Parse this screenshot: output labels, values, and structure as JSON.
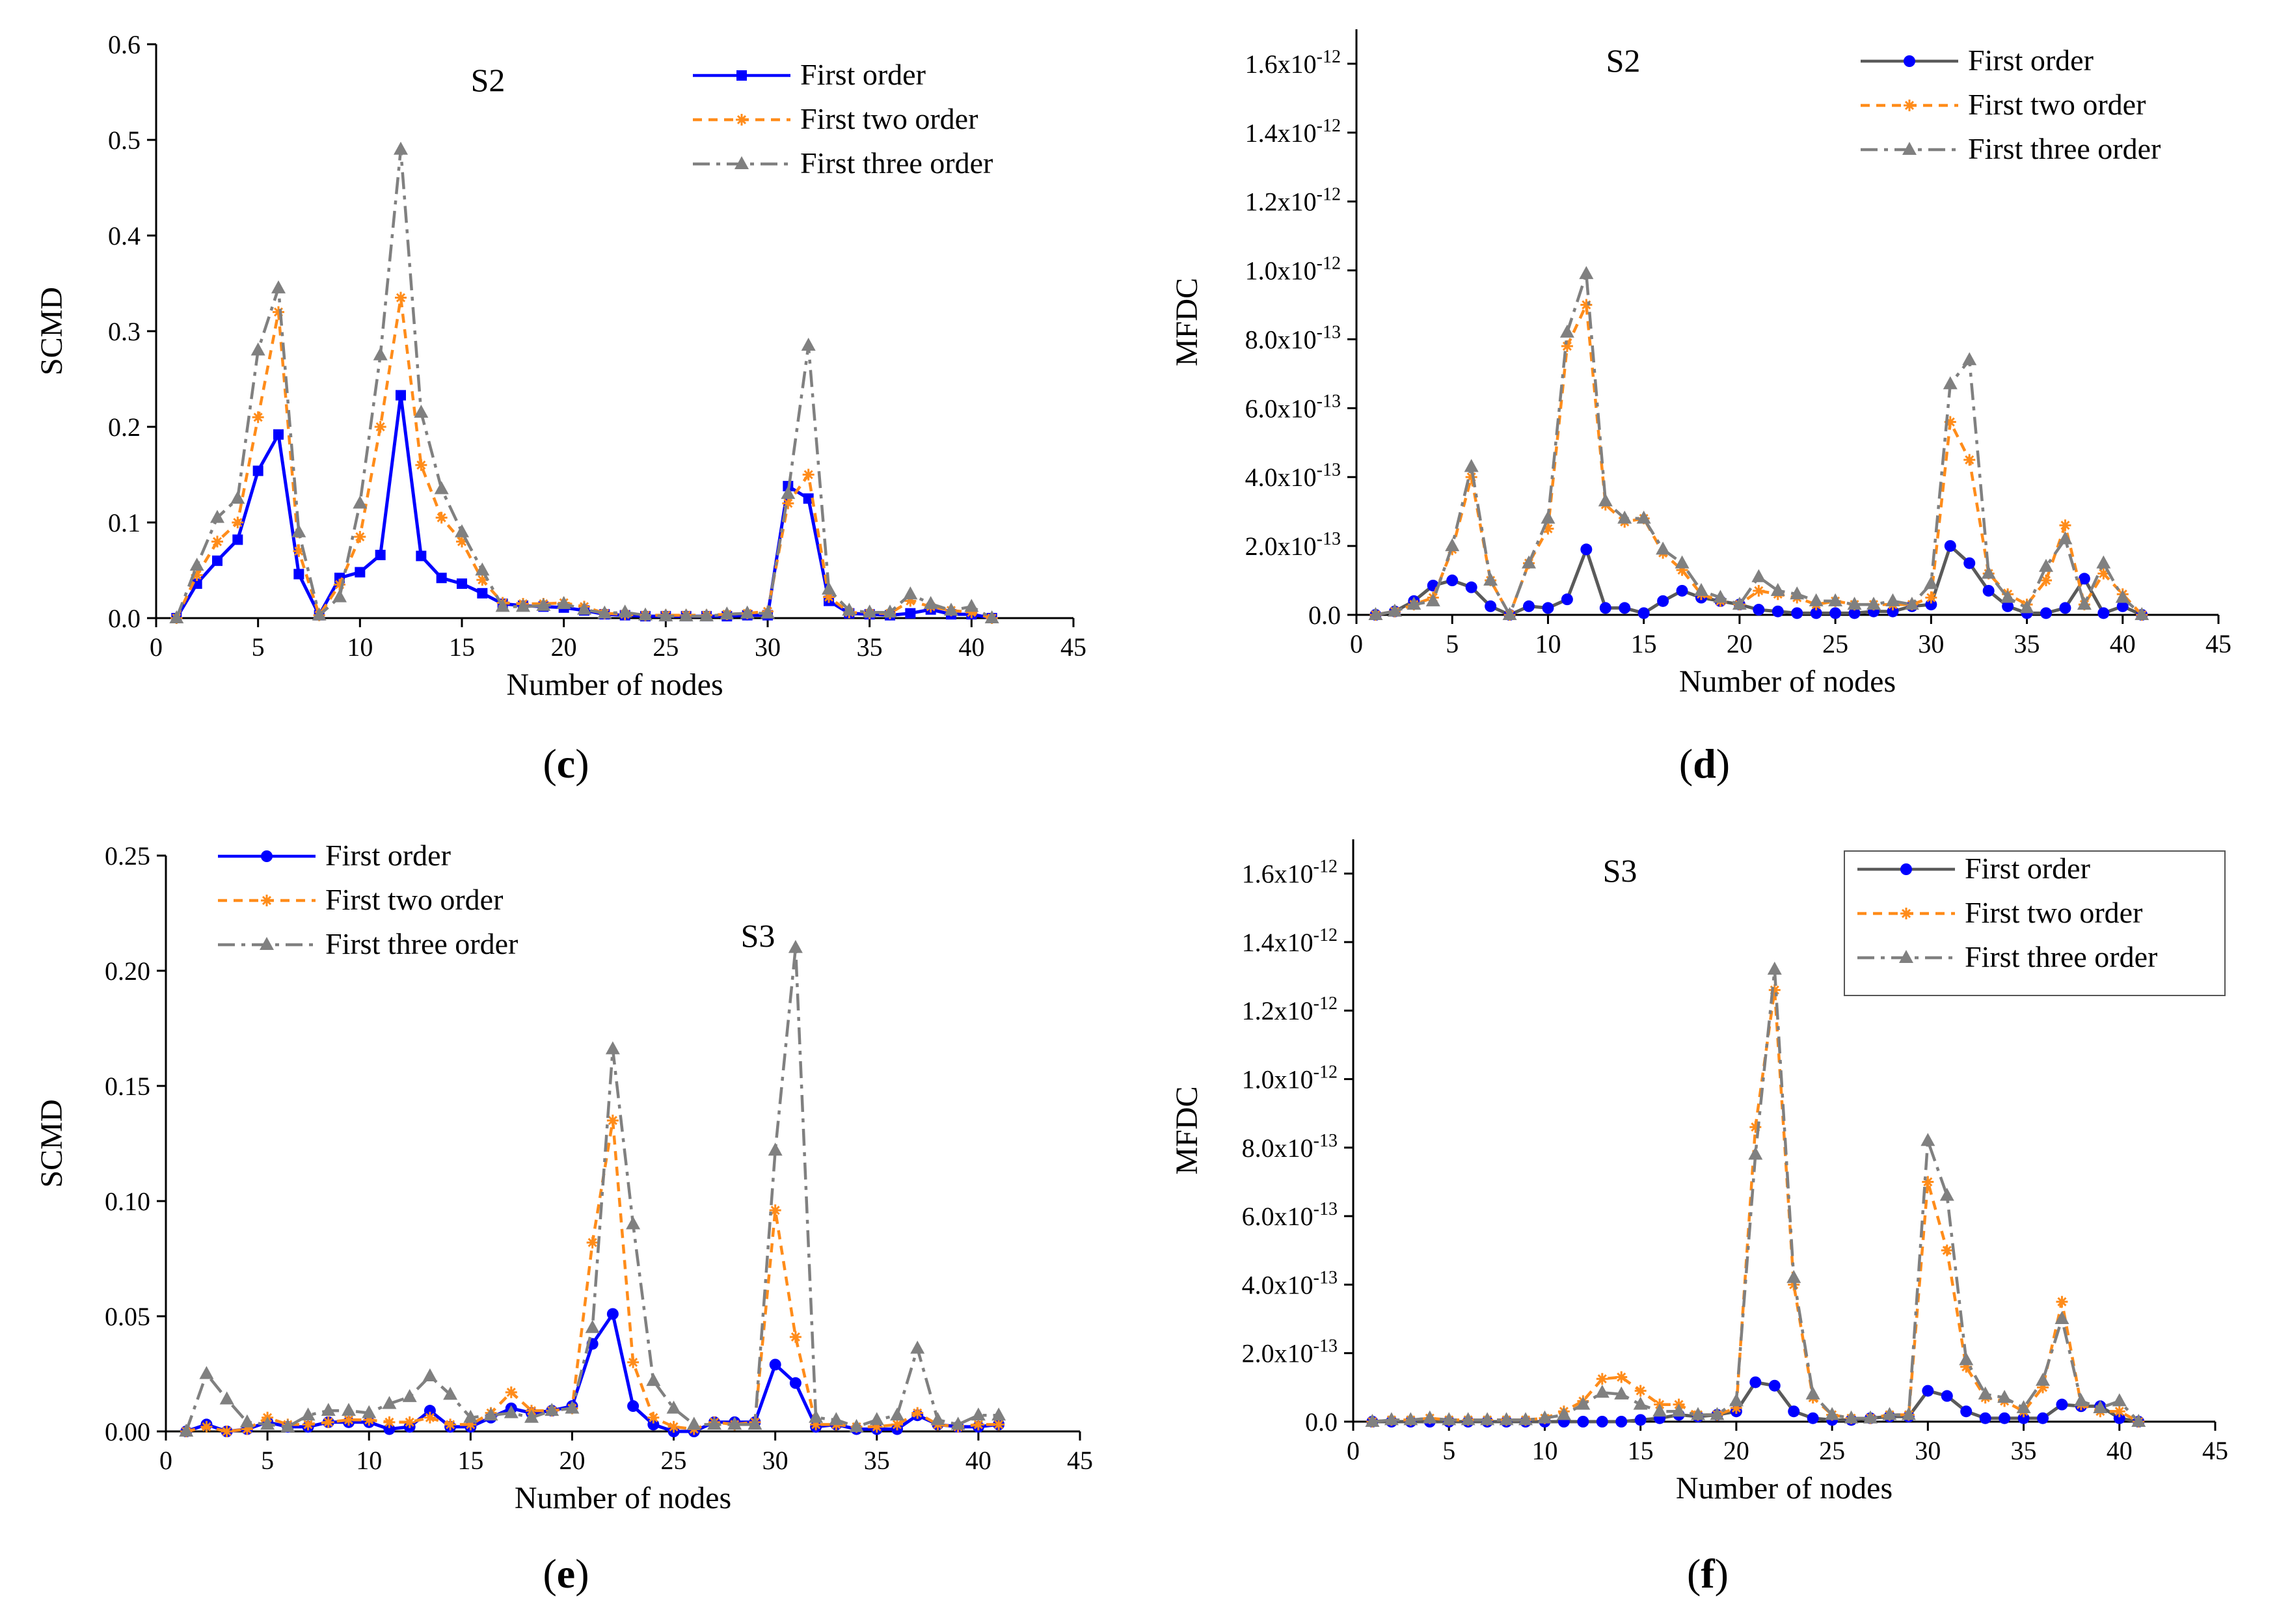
{
  "figure": {
    "legend_labels": [
      "First order",
      "First two order",
      "First three order"
    ],
    "series_colors": [
      "#0000ff",
      "#ff8c1a",
      "#808080"
    ]
  },
  "chart_data": [
    {
      "panel": "(c)",
      "panel_letter": "c",
      "type": "line",
      "title": "S2",
      "xlabel": "Number of nodes",
      "ylabel": "SCMD",
      "xlim": [
        0,
        45
      ],
      "ylim": [
        0,
        0.6
      ],
      "xticks": [
        "0",
        "5",
        "10",
        "15",
        "20",
        "25",
        "30",
        "35",
        "40",
        "45"
      ],
      "yticks": [
        "0.0",
        "0.1",
        "0.2",
        "0.3",
        "0.4",
        "0.5",
        "0.6"
      ],
      "legend": "top-right",
      "x": [
        1,
        2,
        3,
        4,
        5,
        6,
        7,
        8,
        9,
        10,
        11,
        12,
        13,
        14,
        15,
        16,
        17,
        18,
        19,
        20,
        21,
        22,
        23,
        24,
        25,
        26,
        27,
        28,
        29,
        30,
        31,
        32,
        33,
        34,
        35,
        36,
        37,
        38,
        39,
        40,
        41
      ],
      "series": [
        {
          "name": "First order",
          "marker": "square",
          "color": "#0000ff",
          "dash": "solid",
          "values": [
            0,
            0.036,
            0.06,
            0.082,
            0.154,
            0.192,
            0.046,
            0.003,
            0.042,
            0.048,
            0.066,
            0.233,
            0.065,
            0.042,
            0.036,
            0.026,
            0.015,
            0.013,
            0.012,
            0.011,
            0.008,
            0.004,
            0.003,
            0.002,
            0.002,
            0.002,
            0.002,
            0.002,
            0.003,
            0.003,
            0.138,
            0.125,
            0.018,
            0.005,
            0.004,
            0.003,
            0.005,
            0.009,
            0.004,
            0.004,
            0
          ]
        },
        {
          "name": "First two order",
          "marker": "asterisk",
          "color": "#ff8c1a",
          "dash": "dash",
          "values": [
            0,
            0.045,
            0.08,
            0.1,
            0.21,
            0.32,
            0.07,
            0.003,
            0.035,
            0.085,
            0.2,
            0.335,
            0.16,
            0.105,
            0.08,
            0.04,
            0.016,
            0.015,
            0.015,
            0.016,
            0.012,
            0.005,
            0.004,
            0.003,
            0.003,
            0.003,
            0.003,
            0.004,
            0.005,
            0.007,
            0.12,
            0.15,
            0.022,
            0.006,
            0.005,
            0.005,
            0.018,
            0.012,
            0.008,
            0.006,
            0
          ]
        },
        {
          "name": "First three order",
          "marker": "triangle",
          "color": "#808080",
          "dash": "dashdot",
          "values": [
            0,
            0.055,
            0.105,
            0.125,
            0.28,
            0.345,
            0.09,
            0.003,
            0.022,
            0.12,
            0.275,
            0.49,
            0.215,
            0.135,
            0.09,
            0.05,
            0.012,
            0.012,
            0.013,
            0.015,
            0.009,
            0.005,
            0.006,
            0.003,
            0.002,
            0.002,
            0.002,
            0.004,
            0.005,
            0.005,
            0.13,
            0.285,
            0.03,
            0.008,
            0.006,
            0.006,
            0.025,
            0.015,
            0.008,
            0.012,
            0
          ]
        }
      ]
    },
    {
      "panel": "(d)",
      "panel_letter": "d",
      "type": "line",
      "title": "S2",
      "xlabel": "Number of nodes",
      "ylabel": "MFDC",
      "xlim": [
        0,
        45
      ],
      "ylim": [
        0,
        1.7e-12
      ],
      "xticks": [
        "0",
        "5",
        "10",
        "15",
        "20",
        "25",
        "30",
        "35",
        "40",
        "45"
      ],
      "yticks": [
        {
          "value": 0,
          "base": "0.0"
        },
        {
          "value": 2e-13,
          "base": "2.0x10",
          "exp": "-13"
        },
        {
          "value": 4e-13,
          "base": "4.0x10",
          "exp": "-13"
        },
        {
          "value": 6e-13,
          "base": "6.0x10",
          "exp": "-13"
        },
        {
          "value": 8e-13,
          "base": "8.0x10",
          "exp": "-13"
        },
        {
          "value": 1e-12,
          "base": "1.0x10",
          "exp": "-12"
        },
        {
          "value": 1.2e-12,
          "base": "1.2x10",
          "exp": "-12"
        },
        {
          "value": 1.4e-12,
          "base": "1.4x10",
          "exp": "-12"
        },
        {
          "value": 1.6e-12,
          "base": "1.6x10",
          "exp": "-12"
        }
      ],
      "legend": "top-right",
      "x": [
        1,
        2,
        3,
        4,
        5,
        6,
        7,
        8,
        9,
        10,
        11,
        12,
        13,
        14,
        15,
        16,
        17,
        18,
        19,
        20,
        21,
        22,
        23,
        24,
        25,
        26,
        27,
        28,
        29,
        30,
        31,
        32,
        33,
        34,
        35,
        36,
        37,
        38,
        39,
        40,
        41
      ],
      "series": [
        {
          "name": "First order",
          "marker": "circle",
          "color": "#5a5a5a",
          "dash": "solid",
          "marker_color": "#0000ff",
          "values": [
            0,
            1e-14,
            4e-14,
            8.5e-14,
            1e-13,
            8e-14,
            2.5e-14,
            0,
            2.5e-14,
            2e-14,
            4.5e-14,
            1.9e-13,
            2e-14,
            2e-14,
            5e-15,
            4e-14,
            7e-14,
            5e-14,
            4e-14,
            3e-14,
            1.5e-14,
            1e-14,
            5e-15,
            5e-15,
            5e-15,
            5e-15,
            1e-14,
            1e-14,
            2.5e-14,
            3e-14,
            2e-13,
            1.5e-13,
            7e-14,
            2.5e-14,
            5e-15,
            5e-15,
            2e-14,
            1.05e-13,
            5e-15,
            2.5e-14,
            0
          ]
        },
        {
          "name": "First two order",
          "marker": "asterisk",
          "color": "#ff8c1a",
          "dash": "dash",
          "values": [
            0,
            1e-14,
            3e-14,
            5e-14,
            1.9e-13,
            4e-13,
            1e-13,
            0,
            1.5e-13,
            2.5e-13,
            7.8e-13,
            9e-13,
            3.2e-13,
            2.7e-13,
            2.8e-13,
            1.8e-13,
            1.3e-13,
            6e-14,
            4e-14,
            3e-14,
            7e-14,
            6e-14,
            5e-14,
            3e-14,
            4e-14,
            3e-14,
            3e-14,
            3e-14,
            3e-14,
            5e-14,
            5.6e-13,
            4.5e-13,
            1.2e-13,
            6e-14,
            3e-14,
            1e-13,
            2.6e-13,
            3e-14,
            1.2e-13,
            6e-14,
            0
          ]
        },
        {
          "name": "First three order",
          "marker": "triangle",
          "color": "#808080",
          "dash": "dashdot",
          "values": [
            0,
            1e-14,
            3e-14,
            4e-14,
            2e-13,
            4.3e-13,
            1e-13,
            0,
            1.5e-13,
            2.8e-13,
            8.2e-13,
            9.9e-13,
            3.3e-13,
            2.8e-13,
            2.8e-13,
            1.9e-13,
            1.5e-13,
            7e-14,
            5e-14,
            3e-14,
            1.1e-13,
            7e-14,
            6e-14,
            4e-14,
            4e-14,
            3e-14,
            3e-14,
            4e-14,
            3e-14,
            9e-14,
            6.7e-13,
            7.4e-13,
            1.2e-13,
            5e-14,
            2e-14,
            1.4e-13,
            2.2e-13,
            3e-14,
            1.5e-13,
            5e-14,
            0
          ]
        }
      ]
    },
    {
      "panel": "(e)",
      "panel_letter": "e",
      "type": "line",
      "title": "S3",
      "xlabel": "Number of nodes",
      "ylabel": "SCMD",
      "xlim": [
        0,
        45
      ],
      "ylim": [
        0,
        0.25
      ],
      "xticks": [
        "0",
        "5",
        "10",
        "15",
        "20",
        "25",
        "30",
        "35",
        "40",
        "45"
      ],
      "yticks": [
        "0.00",
        "0.05",
        "0.10",
        "0.15",
        "0.20",
        "0.25"
      ],
      "legend": "top-left",
      "x": [
        1,
        2,
        3,
        4,
        5,
        6,
        7,
        8,
        9,
        10,
        11,
        12,
        13,
        14,
        15,
        16,
        17,
        18,
        19,
        20,
        21,
        22,
        23,
        24,
        25,
        26,
        27,
        28,
        29,
        30,
        31,
        32,
        33,
        34,
        35,
        36,
        37,
        38,
        39,
        40,
        41
      ],
      "series": [
        {
          "name": "First order",
          "marker": "circle",
          "color": "#0000ff",
          "dash": "solid",
          "values": [
            0,
            0.003,
            0,
            0.001,
            0.004,
            0.002,
            0.002,
            0.004,
            0.004,
            0.004,
            0.001,
            0.002,
            0.009,
            0.002,
            0.002,
            0.006,
            0.01,
            0.008,
            0.009,
            0.011,
            0.038,
            0.051,
            0.011,
            0.003,
            0,
            0,
            0.004,
            0.004,
            0.004,
            0.029,
            0.021,
            0.002,
            0.003,
            0.001,
            0.001,
            0.001,
            0.007,
            0.003,
            0.002,
            0.002,
            0.003
          ]
        },
        {
          "name": "First two order",
          "marker": "asterisk",
          "color": "#ff8c1a",
          "dash": "dash",
          "values": [
            0,
            0.002,
            0,
            0.001,
            0.006,
            0.003,
            0.003,
            0.004,
            0.005,
            0.005,
            0.004,
            0.004,
            0.006,
            0.003,
            0.003,
            0.008,
            0.017,
            0.009,
            0.009,
            0.01,
            0.082,
            0.135,
            0.03,
            0.006,
            0.002,
            0.001,
            0.004,
            0.003,
            0.004,
            0.096,
            0.041,
            0.003,
            0.003,
            0.002,
            0.002,
            0.003,
            0.008,
            0.003,
            0.002,
            0.003,
            0.003
          ]
        },
        {
          "name": "First three order",
          "marker": "triangle",
          "color": "#808080",
          "dash": "dashdot",
          "values": [
            0,
            0.025,
            0.014,
            0.004,
            0.003,
            0.002,
            0.007,
            0.009,
            0.009,
            0.008,
            0.012,
            0.015,
            0.024,
            0.016,
            0.006,
            0.007,
            0.008,
            0.006,
            0.009,
            0.01,
            0.045,
            0.166,
            0.09,
            0.022,
            0.01,
            0.003,
            0.003,
            0.003,
            0.003,
            0.122,
            0.21,
            0.006,
            0.005,
            0.002,
            0.005,
            0.007,
            0.036,
            0.005,
            0.003,
            0.007,
            0.007
          ]
        }
      ]
    },
    {
      "panel": "(f)",
      "panel_letter": "f",
      "type": "line",
      "title": "S3",
      "xlabel": "Number of nodes",
      "ylabel": "MFDC",
      "xlim": [
        0,
        45
      ],
      "ylim": [
        0,
        1.7e-12
      ],
      "xticks": [
        "0",
        "5",
        "10",
        "15",
        "20",
        "25",
        "30",
        "35",
        "40",
        "45"
      ],
      "yticks": [
        {
          "value": 0,
          "base": "0.0"
        },
        {
          "value": 2e-13,
          "base": "2.0x10",
          "exp": "-13"
        },
        {
          "value": 4e-13,
          "base": "4.0x10",
          "exp": "-13"
        },
        {
          "value": 6e-13,
          "base": "6.0x10",
          "exp": "-13"
        },
        {
          "value": 8e-13,
          "base": "8.0x10",
          "exp": "-13"
        },
        {
          "value": 1e-12,
          "base": "1.0x10",
          "exp": "-12"
        },
        {
          "value": 1.2e-12,
          "base": "1.2x10",
          "exp": "-12"
        },
        {
          "value": 1.4e-12,
          "base": "1.4x10",
          "exp": "-12"
        },
        {
          "value": 1.6e-12,
          "base": "1.6x10",
          "exp": "-12"
        }
      ],
      "legend": "top-right (boxed)",
      "x": [
        1,
        2,
        3,
        4,
        5,
        6,
        7,
        8,
        9,
        10,
        11,
        12,
        13,
        14,
        15,
        16,
        17,
        18,
        19,
        20,
        21,
        22,
        23,
        24,
        25,
        26,
        27,
        28,
        29,
        30,
        31,
        32,
        33,
        34,
        35,
        36,
        37,
        38,
        39,
        40,
        41
      ],
      "series": [
        {
          "name": "First order",
          "marker": "circle",
          "color": "#5a5a5a",
          "dash": "solid",
          "marker_color": "#0000ff",
          "values": [
            0,
            0,
            0,
            0,
            0,
            0,
            0,
            0,
            0,
            0,
            0,
            0,
            0,
            0,
            5e-15,
            1e-14,
            2e-14,
            1.5e-14,
            2e-14,
            3e-14,
            1.15e-13,
            1.05e-13,
            3e-14,
            1e-14,
            5e-15,
            5e-15,
            1e-14,
            1.5e-14,
            1.5e-14,
            9e-14,
            7.5e-14,
            3e-14,
            1e-14,
            1e-14,
            1e-14,
            1e-14,
            5e-14,
            4.5e-14,
            4.5e-14,
            1e-14,
            0
          ]
        },
        {
          "name": "First two order",
          "marker": "asterisk",
          "color": "#ff8c1a",
          "dash": "dash",
          "values": [
            0,
            5e-15,
            5e-15,
            1e-14,
            5e-15,
            5e-15,
            5e-15,
            5e-15,
            5e-15,
            1e-14,
            3e-14,
            6e-14,
            1.25e-13,
            1.3e-13,
            9e-14,
            5e-14,
            5e-14,
            2e-14,
            2e-14,
            4e-14,
            8.6e-13,
            1.26e-12,
            4e-13,
            7e-14,
            2e-14,
            1e-14,
            1e-14,
            2e-14,
            2e-14,
            7e-13,
            5e-13,
            1.6e-13,
            7e-14,
            6e-14,
            3e-14,
            1e-13,
            3.5e-13,
            5e-14,
            3e-14,
            3e-14,
            0
          ]
        },
        {
          "name": "First three order",
          "marker": "triangle",
          "color": "#808080",
          "dash": "dashdot",
          "values": [
            0,
            5e-15,
            5e-15,
            1e-14,
            5e-15,
            5e-15,
            5e-15,
            5e-15,
            5e-15,
            1e-14,
            2e-14,
            5e-14,
            8.5e-14,
            8e-14,
            5e-14,
            3e-14,
            3e-14,
            2e-14,
            2e-14,
            6e-14,
            7.8e-13,
            1.32e-12,
            4.2e-13,
            8e-14,
            2e-14,
            1e-14,
            1e-14,
            2e-14,
            2e-14,
            8.2e-13,
            6.6e-13,
            1.8e-13,
            8e-14,
            7e-14,
            4e-14,
            1.2e-13,
            3e-13,
            6e-14,
            4e-14,
            6e-14,
            0
          ]
        }
      ]
    }
  ]
}
